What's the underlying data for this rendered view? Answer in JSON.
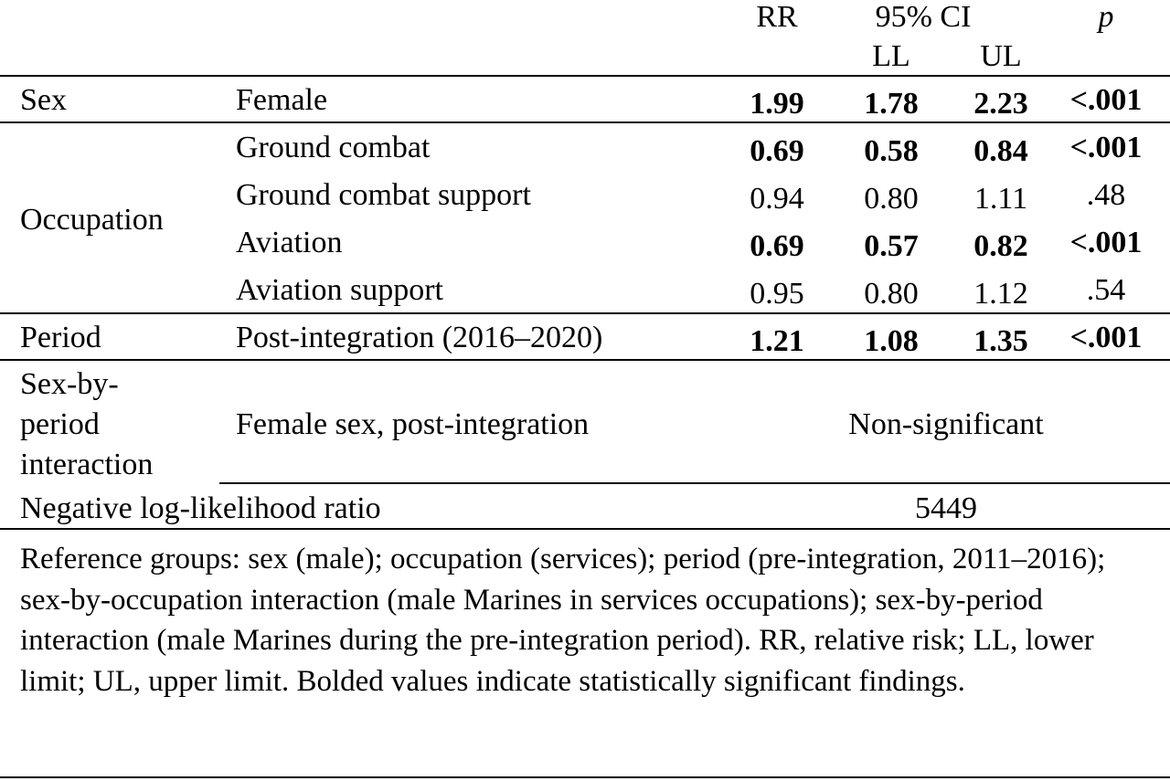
{
  "header": {
    "rr": "RR",
    "ci": "95% CI",
    "p": "p",
    "ll": "LL",
    "ul": "UL"
  },
  "rows": {
    "sex": {
      "group": "Sex",
      "label": "Female",
      "rr": "1.99",
      "ll": "1.78",
      "ul": "2.23",
      "p": "<.001"
    },
    "occupation": {
      "group": "Occupation",
      "items": [
        {
          "label": "Ground combat",
          "rr": "0.69",
          "ll": "0.58",
          "ul": "0.84",
          "p": "<.001",
          "bold": true
        },
        {
          "label": "Ground combat support",
          "rr": "0.94",
          "ll": "0.80",
          "ul": "1.11",
          "p": ".48",
          "bold": false
        },
        {
          "label": "Aviation",
          "rr": "0.69",
          "ll": "0.57",
          "ul": "0.82",
          "p": "<.001",
          "bold": true
        },
        {
          "label": "Aviation support",
          "rr": "0.95",
          "ll": "0.80",
          "ul": "1.12",
          "p": ".54",
          "bold": false
        }
      ]
    },
    "period": {
      "group": "Period",
      "label": "Post-integration (2016–2020)",
      "rr": "1.21",
      "ll": "1.08",
      "ul": "1.35",
      "p": "<.001"
    },
    "interaction": {
      "group_line1": "Sex-by-",
      "group_line2": "period",
      "group_line3": "interaction",
      "label": "Female sex, post-integration",
      "result": "Non-significant"
    },
    "likelihood": {
      "label": "Negative log-likelihood ratio",
      "value": "5449"
    }
  },
  "footnote": "Reference groups: sex (male); occupation (services); period (pre-integration, 2011–2016); sex-by-occupation interaction (male Marines in services occupations); sex-by-period interaction (male Marines during the pre-integration period). RR, relative risk; LL, lower limit; UL, upper limit. Bolded values indicate statistically significant findings."
}
